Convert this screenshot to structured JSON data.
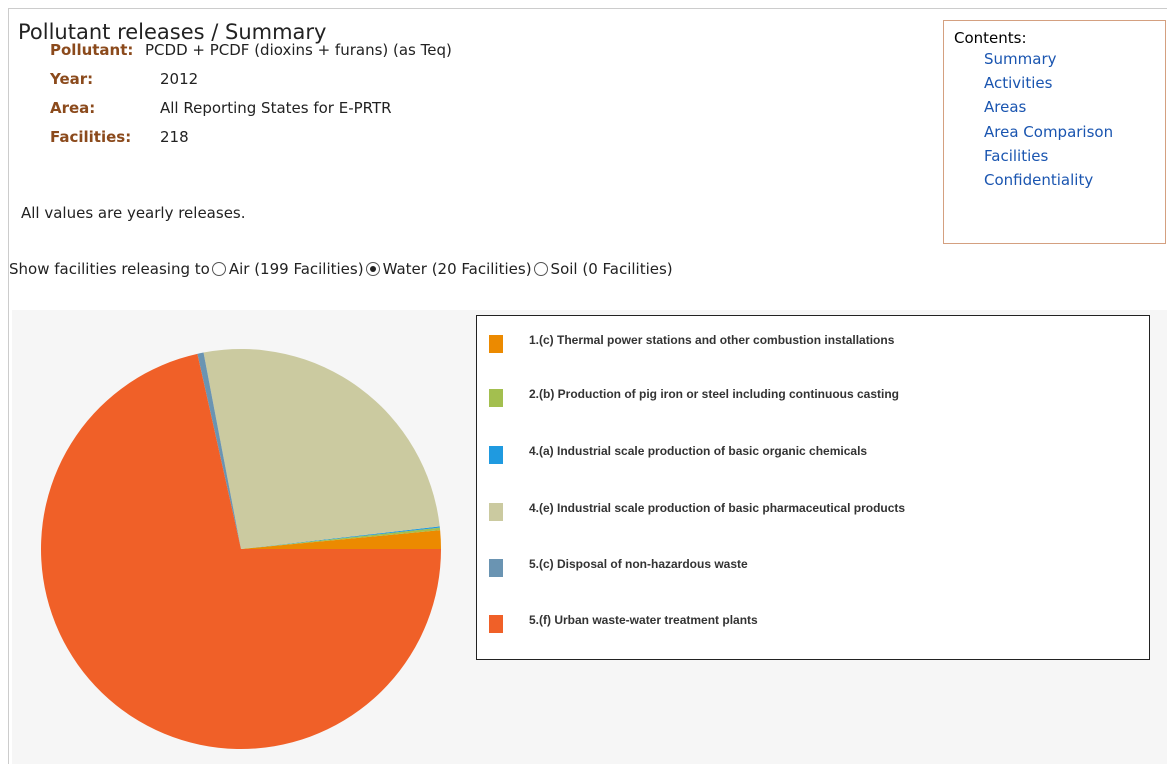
{
  "header": {
    "title": "Pollutant releases / Summary"
  },
  "details": [
    {
      "label": "Pollutant:",
      "value": "PCDD + PCDF (dioxins + furans) (as Teq)"
    },
    {
      "label": "Year:",
      "value": "2012"
    },
    {
      "label": "Area:",
      "value": "All Reporting States for E-PRTR"
    },
    {
      "label": "Facilities:",
      "value": "218"
    }
  ],
  "note": "All values are yearly releases.",
  "contents": {
    "title": "Contents:",
    "links": [
      "Summary",
      "Activities",
      "Areas",
      "Area Comparison",
      "Facilities",
      "Confidentiality"
    ]
  },
  "filter": {
    "label": "Show facilities releasing to",
    "options": [
      {
        "text": "Air (199 Facilities)",
        "checked": false
      },
      {
        "text": "Water (20 Facilities)",
        "checked": true
      },
      {
        "text": "Soil (0 Facilities)",
        "checked": false
      }
    ]
  },
  "chart_data": {
    "type": "pie",
    "categories": [
      "1.(c) Thermal power stations and other combustion installations",
      "2.(b) Production of pig iron or steel including continuous casting",
      "4.(a) Industrial scale production of basic organic chemicals",
      "4.(e) Industrial scale production of basic pharmaceutical products",
      "5.(c) Disposal of non-hazardous waste",
      "5.(f) Urban waste-water treatment plants"
    ],
    "values": [
      1.5,
      0.2,
      0.1,
      26.2,
      0.5,
      71.5
    ],
    "colors": [
      "#ec8a00",
      "#a3bf4f",
      "#1f9ae0",
      "#cbcaa0",
      "#6a94b2",
      "#f06028"
    ]
  }
}
